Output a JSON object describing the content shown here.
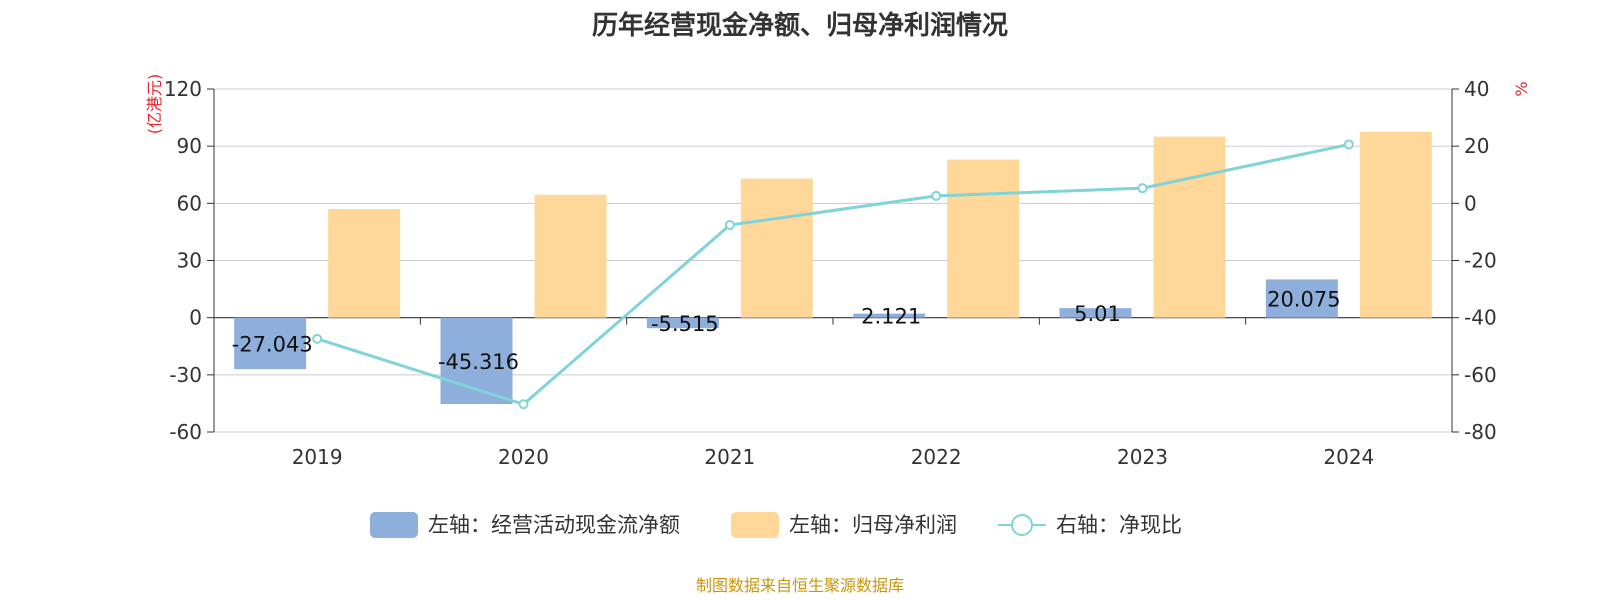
{
  "chart_data": {
    "type": "bar",
    "title": "历年经营现金净额、归母净利润情况",
    "categories": [
      "2019",
      "2020",
      "2021",
      "2022",
      "2023",
      "2024"
    ],
    "left_axis": {
      "unit_label": "(亿港元)",
      "ylim": [
        -60,
        120
      ],
      "ticks": [
        -60,
        -30,
        0,
        30,
        60,
        90,
        120
      ]
    },
    "right_axis": {
      "unit_label": "%",
      "ylim": [
        -80,
        40
      ],
      "ticks": [
        -80,
        -60,
        -40,
        -20,
        0,
        20,
        40
      ]
    },
    "grid": true,
    "series": [
      {
        "name": "左轴：经营活动现金流净额",
        "type": "bar",
        "axis": "left",
        "color": "#8eaedb",
        "values": [
          -27.043,
          -45.316,
          -5.515,
          2.121,
          5.01,
          20.075
        ],
        "labels": [
          "-27.043",
          "-45.316",
          "-5.515",
          "2.121",
          "5.01",
          "20.075"
        ]
      },
      {
        "name": "左轴：归母净利润",
        "type": "bar",
        "axis": "left",
        "color": "#ffd899",
        "values": [
          57.0,
          64.5,
          73.0,
          83.0,
          95.0,
          97.5
        ]
      },
      {
        "name": "右轴：净现比",
        "type": "line",
        "axis": "right",
        "color": "#80d4d8",
        "values": [
          -47.4,
          -70.3,
          -7.6,
          2.6,
          5.3,
          20.6
        ]
      }
    ],
    "legend_position": "bottom"
  },
  "source_text": "制图数据来自恒生聚源数据库"
}
